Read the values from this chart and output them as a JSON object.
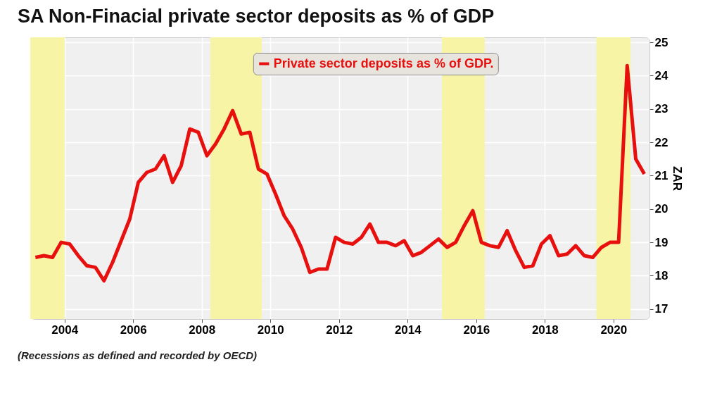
{
  "chart_data": {
    "type": "line",
    "title": "SA Non-Finacial private sector deposits as % of GDP",
    "ylabel": "ZAR",
    "x": [
      2003.15,
      2003.4,
      2003.65,
      2003.9,
      2004.15,
      2004.4,
      2004.65,
      2004.9,
      2005.15,
      2005.4,
      2005.65,
      2005.9,
      2006.15,
      2006.4,
      2006.65,
      2006.9,
      2007.15,
      2007.4,
      2007.65,
      2007.9,
      2008.15,
      2008.4,
      2008.65,
      2008.9,
      2009.15,
      2009.4,
      2009.65,
      2009.9,
      2010.15,
      2010.4,
      2010.65,
      2010.9,
      2011.15,
      2011.4,
      2011.65,
      2011.9,
      2012.15,
      2012.4,
      2012.65,
      2012.9,
      2013.15,
      2013.4,
      2013.65,
      2013.9,
      2014.15,
      2014.4,
      2014.65,
      2014.9,
      2015.15,
      2015.4,
      2015.65,
      2015.9,
      2016.15,
      2016.4,
      2016.65,
      2016.9,
      2017.15,
      2017.4,
      2017.65,
      2017.9,
      2018.15,
      2018.4,
      2018.65,
      2018.9,
      2019.15,
      2019.4,
      2019.65,
      2019.9,
      2020.15,
      2020.4,
      2020.65,
      2020.9
    ],
    "series": [
      {
        "name": "Private sector deposits as % of GDP.",
        "color": "#e8100f",
        "values": [
          18.55,
          18.6,
          18.55,
          19.0,
          18.95,
          18.6,
          18.3,
          18.25,
          17.85,
          18.4,
          19.05,
          19.7,
          20.8,
          21.1,
          21.2,
          21.6,
          20.8,
          21.3,
          22.4,
          22.3,
          21.6,
          21.95,
          22.4,
          22.95,
          22.25,
          22.3,
          21.2,
          21.05,
          20.45,
          19.8,
          19.4,
          18.85,
          18.1,
          18.2,
          18.2,
          19.15,
          19.0,
          18.95,
          19.15,
          19.55,
          19.0,
          19.0,
          18.9,
          19.05,
          18.6,
          18.7,
          18.9,
          19.1,
          18.85,
          19.0,
          19.5,
          19.95,
          19.0,
          18.9,
          18.85,
          19.35,
          18.75,
          18.25,
          18.3,
          18.95,
          19.2,
          18.6,
          18.65,
          18.9,
          18.6,
          18.55,
          18.85,
          19.0,
          19.0,
          24.3,
          21.5,
          21.05
        ]
      }
    ],
    "xlim": [
      2003.0,
      2021.05
    ],
    "xticks": [
      2004,
      2006,
      2008,
      2010,
      2012,
      2014,
      2016,
      2018,
      2020
    ],
    "ylim": [
      16.7,
      25.15
    ],
    "yticks": [
      17,
      18,
      19,
      20,
      21,
      22,
      23,
      24,
      25
    ],
    "grid": true,
    "legend": "top",
    "line_style": "solid",
    "marker": "none",
    "bands": [
      {
        "axis": "x",
        "from": 2003.0,
        "to": 2004.0,
        "color": "#f7f4a6"
      },
      {
        "axis": "x",
        "from": 2008.25,
        "to": 2009.75,
        "color": "#f7f4a6"
      },
      {
        "axis": "x",
        "from": 2015.0,
        "to": 2016.25,
        "color": "#f7f4a6"
      },
      {
        "axis": "x",
        "from": 2019.5,
        "to": 2020.5,
        "color": "#f7f4a6"
      }
    ],
    "annotations": [
      "(Recessions as defined and recorded by OECD)"
    ]
  }
}
